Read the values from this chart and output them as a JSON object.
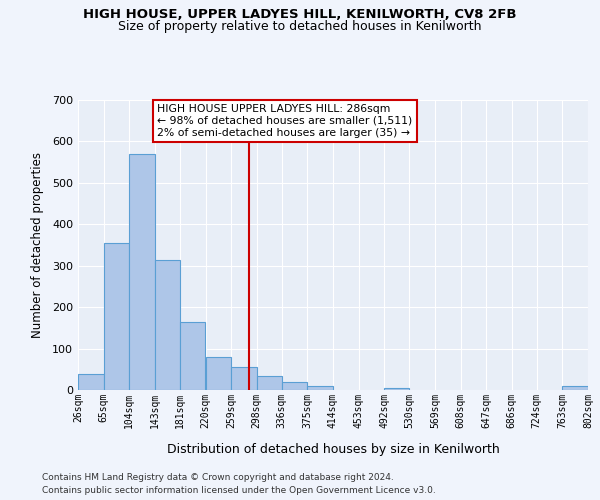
{
  "title1": "HIGH HOUSE, UPPER LADYES HILL, KENILWORTH, CV8 2FB",
  "title2": "Size of property relative to detached houses in Kenilworth",
  "xlabel": "Distribution of detached houses by size in Kenilworth",
  "ylabel": "Number of detached properties",
  "footer1": "Contains HM Land Registry data © Crown copyright and database right 2024.",
  "footer2": "Contains public sector information licensed under the Open Government Licence v3.0.",
  "bin_edges": [
    26,
    65,
    104,
    143,
    181,
    220,
    259,
    298,
    336,
    375,
    414,
    453,
    492,
    530,
    569,
    608,
    647,
    686,
    724,
    763,
    802
  ],
  "bar_heights": [
    38,
    355,
    570,
    315,
    163,
    80,
    55,
    35,
    20,
    10,
    0,
    0,
    5,
    0,
    0,
    0,
    0,
    0,
    0,
    10
  ],
  "bar_color": "#aec6e8",
  "bar_edge_color": "#5a9fd4",
  "vline_x": 286,
  "vline_color": "#cc0000",
  "ylim": [
    0,
    700
  ],
  "yticks": [
    0,
    100,
    200,
    300,
    400,
    500,
    600,
    700
  ],
  "annotation_text": "HIGH HOUSE UPPER LADYES HILL: 286sqm\n← 98% of detached houses are smaller (1,511)\n2% of semi-detached houses are larger (35) →",
  "annotation_box_color": "#ffffff",
  "annotation_box_edge": "#cc0000",
  "bg_color": "#e8eef7",
  "fig_bg_color": "#f0f4fc"
}
